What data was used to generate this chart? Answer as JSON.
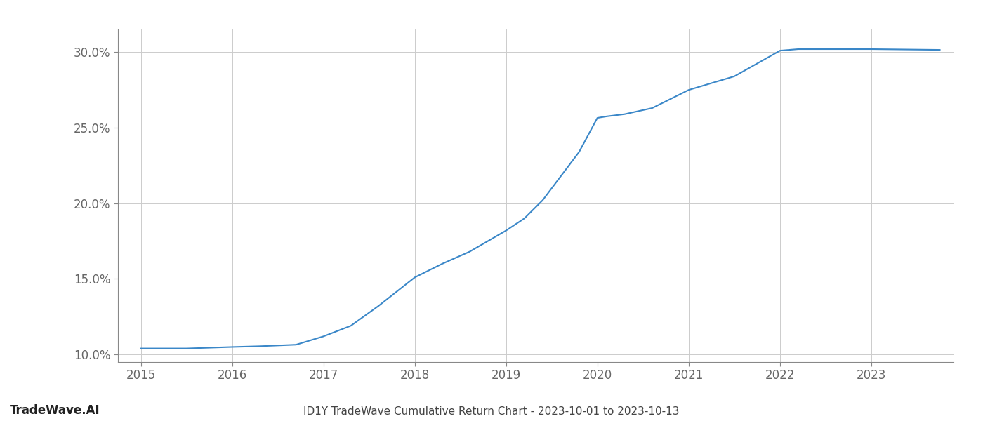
{
  "x_values": [
    2015.0,
    2015.5,
    2016.0,
    2016.3,
    2016.7,
    2017.0,
    2017.3,
    2017.6,
    2018.0,
    2018.3,
    2018.6,
    2019.0,
    2019.2,
    2019.4,
    2019.6,
    2019.8,
    2020.0,
    2020.1,
    2020.3,
    2020.6,
    2021.0,
    2021.5,
    2022.0,
    2022.2,
    2022.5,
    2023.0,
    2023.75
  ],
  "y_values": [
    10.4,
    10.4,
    10.5,
    10.55,
    10.65,
    11.2,
    11.9,
    13.2,
    15.1,
    16.0,
    16.8,
    18.2,
    19.0,
    20.2,
    21.8,
    23.4,
    25.65,
    25.75,
    25.9,
    26.3,
    27.5,
    28.4,
    30.1,
    30.2,
    30.2,
    30.2,
    30.15
  ],
  "line_color": "#3a87c8",
  "line_width": 1.5,
  "title": "ID1Y TradeWave Cumulative Return Chart - 2023-10-01 to 2023-10-13",
  "watermark": "TradeWave.AI",
  "x_ticks": [
    2015,
    2016,
    2017,
    2018,
    2019,
    2020,
    2021,
    2022,
    2023
  ],
  "y_ticks": [
    10.0,
    15.0,
    20.0,
    25.0,
    30.0
  ],
  "y_tick_labels": [
    "10.0%",
    "15.0%",
    "20.0%",
    "25.0%",
    "30.0%"
  ],
  "xlim": [
    2014.75,
    2023.9
  ],
  "ylim": [
    9.5,
    31.5
  ],
  "grid_color": "#cccccc",
  "background_color": "#ffffff",
  "title_fontsize": 11,
  "watermark_fontsize": 12,
  "tick_fontsize": 12
}
